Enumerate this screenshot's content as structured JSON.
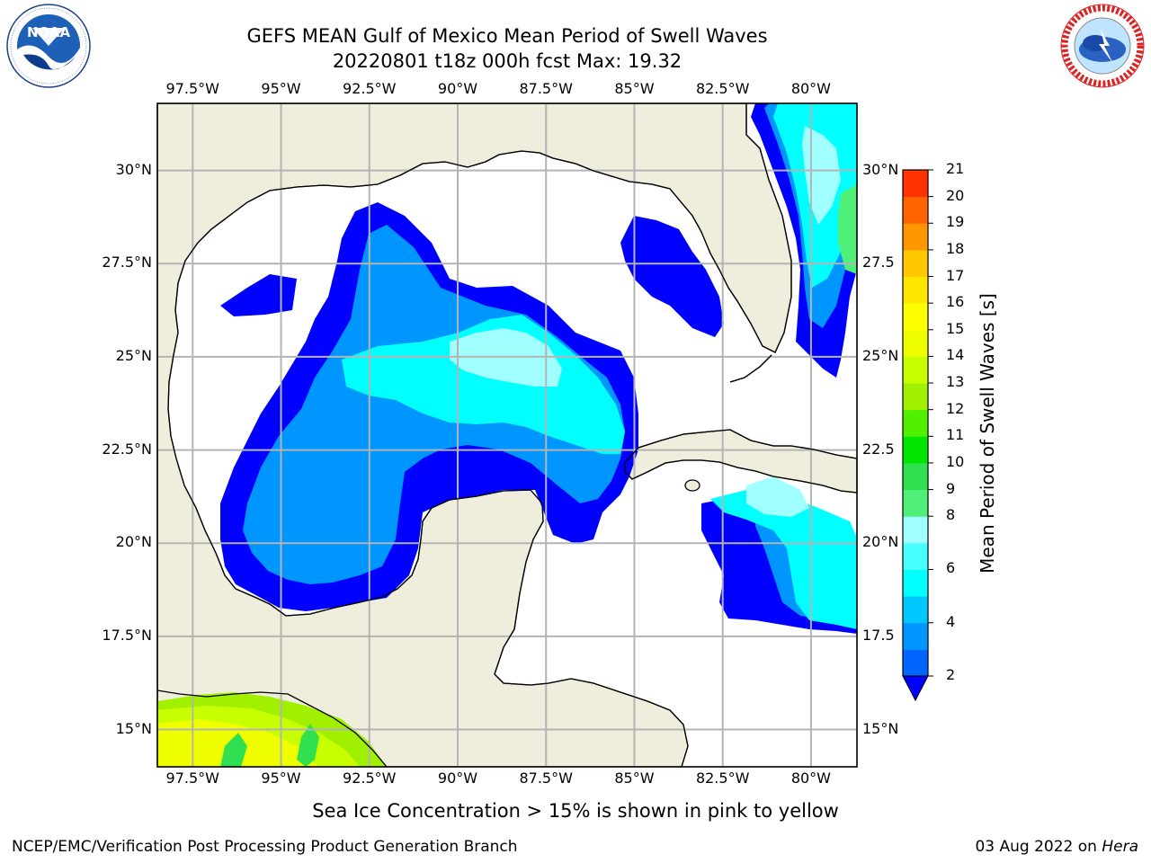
{
  "title": {
    "line1": "GEFS MEAN Gulf of Mexico Mean Period of Swell Waves",
    "line2": "20220801 t18z 000h fcst   Max: 19.32"
  },
  "logos": {
    "left": {
      "name": "noaa-logo",
      "text": "NOAA",
      "ring_text": "NATIONAL OCEANIC AND ATMOSPHERIC ADMINISTRATION · U.S. DEPARTMENT OF COMMERCE"
    },
    "right": {
      "name": "nws-logo",
      "ring_text": "NATIONAL WEATHER SERVICE"
    }
  },
  "map": {
    "projection": "lat-lon",
    "lon_range": [
      -98.5,
      -78.7
    ],
    "lat_range": [
      14.0,
      31.8
    ],
    "lon_ticks": [
      "97.5°W",
      "95°W",
      "92.5°W",
      "90°W",
      "87.5°W",
      "85°W",
      "82.5°W",
      "80°W"
    ],
    "lat_ticks_left": [
      "30°N",
      "27.5°N",
      "25°N",
      "22.5°N",
      "20°N",
      "17.5°N",
      "15°N"
    ],
    "lat_ticks_right": [
      "30°N",
      "27.5",
      "25°N",
      "22.5",
      "20°N",
      "17.5",
      "15°N"
    ],
    "grid": true,
    "land_color": "#efeddb",
    "ocean_color": "#ffffff",
    "grid_color": "#b4b4b4"
  },
  "chart_data": {
    "type": "heatmap",
    "title": "GEFS MEAN Gulf of Mexico Mean Period of Swell Waves",
    "subtitle": "20220801 t18z 000h fcst   Max: 19.32",
    "variable": "Mean Period of Swell Waves [s]",
    "max_value": 19.32,
    "colorbar": {
      "label": "Mean Period of Swell Waves [s]",
      "levels": [
        2,
        3,
        4,
        5,
        6,
        7,
        8,
        9,
        10,
        11,
        12,
        13,
        14,
        15,
        16,
        17,
        18,
        19,
        20,
        21
      ],
      "tick_labels": [
        "2",
        "4",
        "6",
        "8",
        "9",
        "10",
        "11",
        "12",
        "13",
        "14",
        "15",
        "16",
        "17",
        "18",
        "19",
        "20",
        "21"
      ],
      "colors": [
        "#0000ff",
        "#0064ff",
        "#0096ff",
        "#00c8ff",
        "#00ffff",
        "#48ffff",
        "#a0ffff",
        "#50f078",
        "#30e050",
        "#00e600",
        "#50f000",
        "#a0f000",
        "#c8ff00",
        "#f0ff00",
        "#ffff00",
        "#ffe600",
        "#ffc800",
        "#ff9600",
        "#ff6400",
        "#ff3200",
        "#ff0000"
      ],
      "extend": "min"
    },
    "regions": [
      {
        "area": "central Gulf (swell core)",
        "approx_range_s": [
          6,
          9
        ]
      },
      {
        "area": "western/southern Gulf",
        "approx_range_s": [
          2,
          5
        ]
      },
      {
        "area": "Atlantic east of Florida",
        "approx_range_s": [
          5,
          10
        ]
      },
      {
        "area": "Caribbean south of Cuba",
        "approx_range_s": [
          2,
          8
        ]
      },
      {
        "area": "Eastern Pacific (SW corner)",
        "approx_range_s": [
          11,
          15
        ]
      }
    ]
  },
  "bottom_note": "Sea Ice Concentration > 15% is shown in pink to yellow",
  "credits": {
    "left": "NCEP/EMC/Verification Post Processing Product Generation Branch",
    "right_date": "03 Aug 2022 on ",
    "right_host": "Hera"
  }
}
